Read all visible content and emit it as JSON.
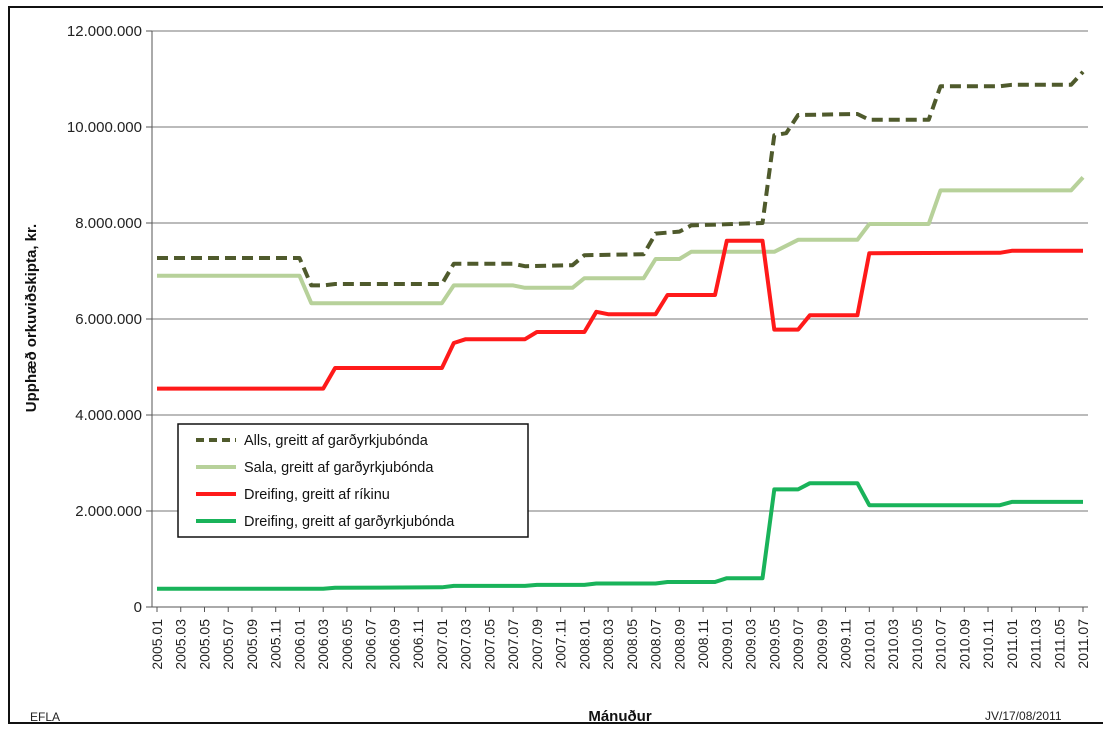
{
  "chart_data": {
    "type": "line",
    "xlabel": "Mánuður",
    "ylabel": "Upphæð orkuviðskipta, kr.",
    "ylim": [
      0,
      12000000
    ],
    "y_ticks": [
      0,
      2000000,
      4000000,
      6000000,
      8000000,
      10000000,
      12000000
    ],
    "y_tick_labels": [
      "0",
      "2.000.000",
      "4.000.000",
      "6.000.000",
      "8.000.000",
      "10.000.000",
      "12.000.000"
    ],
    "grid": "horizontal",
    "legend_position": "left-center",
    "x_tick_labels": [
      "2005.01",
      "2005.03",
      "2005.05",
      "2005.07",
      "2005.09",
      "2005.11",
      "2006.01",
      "2006.03",
      "2006.05",
      "2006.07",
      "2006.09",
      "2006.11",
      "2007.01",
      "2007.03",
      "2007.05",
      "2007.07",
      "2007.09",
      "2007.11",
      "2008.01",
      "2008.03",
      "2008.05",
      "2008.07",
      "2008.09",
      "2008.11",
      "2009.01",
      "2009.03",
      "2009.05",
      "2009.07",
      "2009.09",
      "2009.11",
      "2010.01",
      "2010.03",
      "2010.05",
      "2010.07",
      "2010.09",
      "2010.11",
      "2011.01",
      "2011.03",
      "2011.05",
      "2011.07"
    ],
    "x_start": "2005.01",
    "x_end": "2011.07",
    "series": [
      {
        "name": "Alls, greitt af garðyrkjubónda",
        "color": "#4f5a2c",
        "style": "dashed",
        "points": [
          [
            "2005.01",
            7270000
          ],
          [
            "2006.01",
            7270000
          ],
          [
            "2006.02",
            6700000
          ],
          [
            "2006.03",
            6700000
          ],
          [
            "2006.04",
            6730000
          ],
          [
            "2007.01",
            6730000
          ],
          [
            "2007.02",
            7150000
          ],
          [
            "2007.07",
            7150000
          ],
          [
            "2007.08",
            7100000
          ],
          [
            "2007.12",
            7120000
          ],
          [
            "2008.01",
            7330000
          ],
          [
            "2008.06",
            7350000
          ],
          [
            "2008.07",
            7780000
          ],
          [
            "2008.09",
            7820000
          ],
          [
            "2008.10",
            7950000
          ],
          [
            "2009.04",
            8000000
          ],
          [
            "2009.05",
            9830000
          ],
          [
            "2009.06",
            9870000
          ],
          [
            "2009.07",
            10250000
          ],
          [
            "2009.12",
            10270000
          ],
          [
            "2010.01",
            10150000
          ],
          [
            "2010.06",
            10150000
          ],
          [
            "2010.07",
            10850000
          ],
          [
            "2010.12",
            10850000
          ],
          [
            "2011.01",
            10880000
          ],
          [
            "2011.06",
            10880000
          ],
          [
            "2011.07",
            11150000
          ]
        ]
      },
      {
        "name": "Sala, greitt af garðyrkjubónda",
        "color": "#b7d19a",
        "style": "solid",
        "points": [
          [
            "2005.01",
            6900000
          ],
          [
            "2006.01",
            6900000
          ],
          [
            "2006.02",
            6330000
          ],
          [
            "2007.01",
            6330000
          ],
          [
            "2007.02",
            6700000
          ],
          [
            "2007.07",
            6700000
          ],
          [
            "2007.08",
            6650000
          ],
          [
            "2007.12",
            6650000
          ],
          [
            "2008.01",
            6850000
          ],
          [
            "2008.06",
            6850000
          ],
          [
            "2008.07",
            7250000
          ],
          [
            "2008.09",
            7250000
          ],
          [
            "2008.10",
            7400000
          ],
          [
            "2009.05",
            7400000
          ],
          [
            "2009.07",
            7650000
          ],
          [
            "2009.12",
            7650000
          ],
          [
            "2010.01",
            7980000
          ],
          [
            "2010.06",
            7980000
          ],
          [
            "2010.07",
            8680000
          ],
          [
            "2011.06",
            8680000
          ],
          [
            "2011.07",
            8950000
          ]
        ]
      },
      {
        "name": "Dreifing, greitt af ríkinu",
        "color": "#ff1a1a",
        "style": "solid",
        "points": [
          [
            "2005.01",
            4550000
          ],
          [
            "2006.03",
            4550000
          ],
          [
            "2006.04",
            4980000
          ],
          [
            "2007.01",
            4980000
          ],
          [
            "2007.02",
            5500000
          ],
          [
            "2007.03",
            5580000
          ],
          [
            "2007.08",
            5580000
          ],
          [
            "2007.09",
            5730000
          ],
          [
            "2008.01",
            5730000
          ],
          [
            "2008.02",
            6150000
          ],
          [
            "2008.03",
            6100000
          ],
          [
            "2008.07",
            6100000
          ],
          [
            "2008.08",
            6500000
          ],
          [
            "2008.12",
            6500000
          ],
          [
            "2009.01",
            7630000
          ],
          [
            "2009.04",
            7630000
          ],
          [
            "2009.05",
            5780000
          ],
          [
            "2009.07",
            5780000
          ],
          [
            "2009.08",
            6080000
          ],
          [
            "2009.12",
            6080000
          ],
          [
            "2010.01",
            7370000
          ],
          [
            "2010.12",
            7380000
          ],
          [
            "2011.01",
            7420000
          ],
          [
            "2011.07",
            7420000
          ]
        ]
      },
      {
        "name": "Dreifing, greitt af garðyrkjubónda",
        "color": "#19b35a",
        "style": "solid",
        "points": [
          [
            "2005.01",
            380000
          ],
          [
            "2006.03",
            380000
          ],
          [
            "2006.04",
            400000
          ],
          [
            "2007.01",
            410000
          ],
          [
            "2007.02",
            440000
          ],
          [
            "2007.08",
            440000
          ],
          [
            "2007.09",
            460000
          ],
          [
            "2008.01",
            460000
          ],
          [
            "2008.02",
            490000
          ],
          [
            "2008.07",
            490000
          ],
          [
            "2008.08",
            520000
          ],
          [
            "2008.12",
            520000
          ],
          [
            "2009.01",
            600000
          ],
          [
            "2009.04",
            600000
          ],
          [
            "2009.05",
            2450000
          ],
          [
            "2009.07",
            2450000
          ],
          [
            "2009.08",
            2580000
          ],
          [
            "2009.12",
            2580000
          ],
          [
            "2010.01",
            2120000
          ],
          [
            "2010.12",
            2120000
          ],
          [
            "2011.01",
            2190000
          ],
          [
            "2011.07",
            2190000
          ]
        ]
      }
    ]
  },
  "footer": {
    "left": "EFLA",
    "right": "JV/17/08/2011"
  }
}
